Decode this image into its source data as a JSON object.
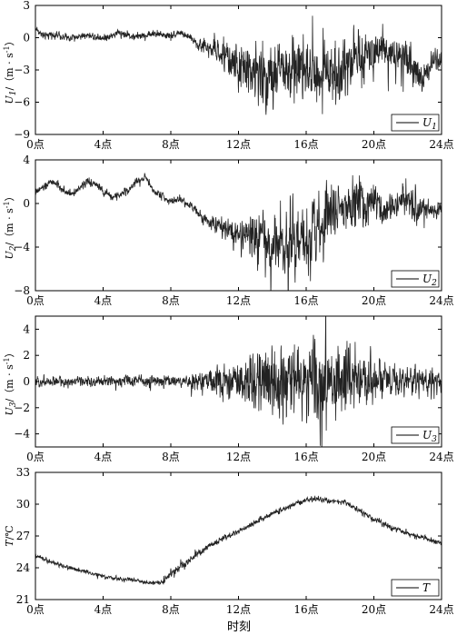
{
  "figure": {
    "xlabel": "时刻",
    "x_ticks": [
      "0点",
      "4点",
      "8点",
      "12点",
      "16点",
      "20点",
      "24点"
    ]
  },
  "chart_data": [
    {
      "type": "line",
      "ylabel": {
        "symbol": "U",
        "sub": "1",
        "unit": "/（m · s",
        "sup": "-1",
        "close": "）"
      },
      "legend": {
        "symbol": "U",
        "sub": "1",
        "position": "bottom-right"
      },
      "x_range": [
        0,
        24
      ],
      "ylim": [
        -9,
        3
      ],
      "y_ticks": [
        -9,
        -6,
        -3,
        0,
        3
      ],
      "series": [
        {
          "x": [
            0,
            0.5,
            1,
            1.5,
            2,
            2.5,
            3,
            3.5,
            4,
            4.5,
            5,
            5.5,
            6,
            6.5,
            7,
            7.5,
            8,
            8.5,
            9,
            9.5,
            10,
            10.5,
            11,
            11.5,
            12,
            12.5,
            13,
            13.5,
            14,
            14.5,
            15,
            15.5,
            16,
            16.5,
            17,
            17.5,
            18,
            18.5,
            19,
            19.5,
            20,
            20.5,
            21,
            21.5,
            22,
            22.5,
            23,
            23.5,
            24
          ],
          "values": [
            0.9,
            0.1,
            0.3,
            0.2,
            -0.1,
            0.1,
            0.3,
            0.1,
            0,
            0.2,
            0.5,
            0.2,
            0.1,
            0.2,
            0.4,
            0.3,
            0.2,
            0.5,
            0.1,
            -0.4,
            -0.8,
            -1.2,
            -1.6,
            -2.1,
            -2.6,
            -3,
            -3.4,
            -3.2,
            -3.8,
            -3.1,
            -3.5,
            -2.8,
            -2.4,
            -3.6,
            -2.9,
            -3.2,
            -3.5,
            -2.2,
            -2,
            -1.5,
            -1,
            -0.7,
            -1.5,
            -2,
            -2.5,
            -3.1,
            -3.8,
            -2.2,
            -1.5
          ],
          "noise": [
            0.35,
            0.35,
            0.35,
            0.35,
            0.35,
            0.35,
            0.35,
            0.35,
            0.35,
            0.35,
            0.35,
            0.35,
            0.35,
            0.35,
            0.35,
            0.35,
            0.35,
            0.35,
            0.4,
            0.6,
            0.8,
            1,
            1.3,
            1.6,
            2,
            2.3,
            2.6,
            2.8,
            3,
            3,
            3,
            3,
            3,
            2.8,
            2.6,
            2.6,
            2.8,
            2.6,
            2.4,
            2.2,
            2,
            1.9,
            1.8,
            1.8,
            1.8,
            1.8,
            1.6,
            1.4,
            1.2
          ]
        }
      ]
    },
    {
      "type": "line",
      "ylabel": {
        "symbol": "U",
        "sub": "2",
        "unit": "/（m · s",
        "sup": "-1",
        "close": "）"
      },
      "legend": {
        "symbol": "U",
        "sub": "2",
        "position": "bottom-right"
      },
      "x_range": [
        0,
        24
      ],
      "ylim": [
        -8,
        4
      ],
      "y_ticks": [
        -8,
        -4,
        0,
        4
      ],
      "series": [
        {
          "x": [
            0,
            0.5,
            1,
            1.5,
            2,
            2.5,
            3,
            3.5,
            4,
            4.5,
            5,
            5.5,
            6,
            6.5,
            7,
            7.5,
            8,
            8.5,
            9,
            9.5,
            10,
            10.5,
            11,
            11.5,
            12,
            12.5,
            13,
            13.5,
            14,
            14.5,
            15,
            15.5,
            16,
            16.5,
            17,
            17.5,
            18,
            18.5,
            19,
            19.5,
            20,
            20.5,
            21,
            21.5,
            22,
            22.5,
            23,
            23.5,
            24
          ],
          "values": [
            1,
            1.5,
            2,
            1.4,
            0.9,
            1.2,
            2,
            1.8,
            1.1,
            0.6,
            0.8,
            1.3,
            2,
            2.4,
            1.1,
            0.7,
            0.2,
            0.4,
            0,
            -0.6,
            -1.4,
            -1.8,
            -2.1,
            -2.3,
            -2.6,
            -2.9,
            -3.3,
            -3.6,
            -4.2,
            -3.6,
            -3.3,
            -3.6,
            -3.8,
            -2.6,
            -1.7,
            -1,
            -0.5,
            -0.3,
            0.2,
            -0.2,
            0,
            -0.6,
            -0.3,
            0,
            0.2,
            -0.5,
            -1,
            -0.5,
            -0.3
          ],
          "noise": [
            0.35,
            0.35,
            0.35,
            0.35,
            0.35,
            0.35,
            0.35,
            0.35,
            0.35,
            0.35,
            0.35,
            0.35,
            0.35,
            0.35,
            0.35,
            0.35,
            0.35,
            0.35,
            0.4,
            0.5,
            0.6,
            0.7,
            0.9,
            1,
            1.2,
            1.6,
            2,
            2.4,
            2.8,
            3,
            3,
            3,
            3,
            2.8,
            2.6,
            2.5,
            2.4,
            2.3,
            2.2,
            2,
            1.8,
            1.6,
            1.5,
            1.5,
            1.5,
            1.5,
            1.4,
            1.2,
            1
          ]
        }
      ]
    },
    {
      "type": "line",
      "ylabel": {
        "symbol": "U",
        "sub": "3",
        "unit": "/（m · s",
        "sup": "-1",
        "close": "）"
      },
      "legend": {
        "symbol": "U",
        "sub": "3",
        "position": "bottom-right"
      },
      "x_range": [
        0,
        24
      ],
      "ylim": [
        -5,
        5
      ],
      "y_ticks": [
        -4,
        -2,
        0,
        2,
        4
      ],
      "series": [
        {
          "x": [
            0,
            2,
            4,
            6,
            8,
            9,
            10,
            11,
            12,
            13,
            14,
            15,
            16,
            17,
            18,
            19,
            20,
            21,
            22,
            23,
            24
          ],
          "values": [
            0,
            0,
            0,
            0.1,
            0,
            0,
            0,
            0,
            0,
            0,
            0,
            0,
            0,
            0,
            0,
            0,
            0,
            0,
            0,
            0,
            0
          ],
          "noise": [
            0.4,
            0.4,
            0.4,
            0.45,
            0.4,
            0.5,
            0.8,
            1.2,
            1.6,
            2.4,
            2.8,
            3,
            3,
            2.9,
            2.7,
            2.2,
            1.6,
            1.3,
            1.1,
            1,
            0.9
          ]
        }
      ]
    },
    {
      "type": "line",
      "ylabel": {
        "symbol": "T",
        "sub": "",
        "unit": "/℃",
        "sup": "",
        "close": ""
      },
      "legend": {
        "symbol": "T",
        "sub": "",
        "position": "bottom-right"
      },
      "x_range": [
        0,
        24
      ],
      "ylim": [
        21,
        33
      ],
      "y_ticks": [
        21,
        24,
        27,
        30,
        33
      ],
      "series": [
        {
          "x": [
            0,
            0.5,
            1,
            2,
            3,
            4,
            5,
            6,
            6.5,
            7,
            7.5,
            8,
            9,
            10,
            11,
            12,
            13,
            14,
            15,
            15.5,
            16,
            16.5,
            17,
            18,
            18.5,
            19,
            20,
            21,
            22,
            23,
            24
          ],
          "values": [
            25.1,
            24.8,
            24.5,
            24,
            23.6,
            23.2,
            22.9,
            22.8,
            22.6,
            22.6,
            22.6,
            23.5,
            24.5,
            25.8,
            26.7,
            27.4,
            28.3,
            29.1,
            29.8,
            30.1,
            30.4,
            30.5,
            30.4,
            30.2,
            30,
            29.5,
            28.6,
            27.8,
            27.2,
            26.8,
            26.3
          ],
          "noise": [
            0.2,
            0.2,
            0.2,
            0.2,
            0.2,
            0.2,
            0.2,
            0.2,
            0.2,
            0.2,
            0.3,
            0.4,
            0.35,
            0.3,
            0.25,
            0.25,
            0.25,
            0.25,
            0.25,
            0.25,
            0.25,
            0.25,
            0.25,
            0.25,
            0.25,
            0.25,
            0.25,
            0.25,
            0.25,
            0.25,
            0.25
          ]
        }
      ]
    }
  ]
}
